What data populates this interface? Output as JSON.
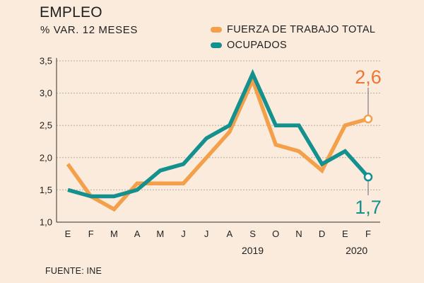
{
  "chart_data": {
    "type": "line",
    "title": "EMPLEO",
    "subtitle": "% VAR. 12 MESES",
    "categories": [
      "E",
      "F",
      "M",
      "A",
      "M",
      "J",
      "J",
      "A",
      "S",
      "O",
      "N",
      "D",
      "E",
      "F"
    ],
    "year_labels": [
      {
        "label": "2019",
        "category_index": 8
      },
      {
        "label": "2020",
        "category_index": 12.5
      }
    ],
    "ylim": [
      1.0,
      3.5
    ],
    "yticks": [
      1.0,
      1.5,
      2.0,
      2.5,
      3.0,
      3.5
    ],
    "ytick_labels": [
      "1,0",
      "1,5",
      "2,0",
      "2,5",
      "3,0",
      "3,5"
    ],
    "grid": true,
    "series": [
      {
        "name": "FUERZA DE TRABAJO TOTAL",
        "color": "#f4a04a",
        "values": [
          1.9,
          1.4,
          1.2,
          1.6,
          1.6,
          1.6,
          2.0,
          2.4,
          3.2,
          2.2,
          2.1,
          1.8,
          2.5,
          2.6
        ],
        "end_label": "2,6",
        "end_label_color": "#ee7633"
      },
      {
        "name": "OCUPADOS",
        "color": "#14908f",
        "values": [
          1.5,
          1.4,
          1.4,
          1.5,
          1.8,
          1.9,
          2.3,
          2.5,
          3.3,
          2.5,
          2.5,
          1.9,
          2.1,
          1.7
        ],
        "end_label": "1,7",
        "end_label_color": "#14908f"
      }
    ],
    "legend_position": "top-right",
    "source": "FUENTE: INE"
  }
}
